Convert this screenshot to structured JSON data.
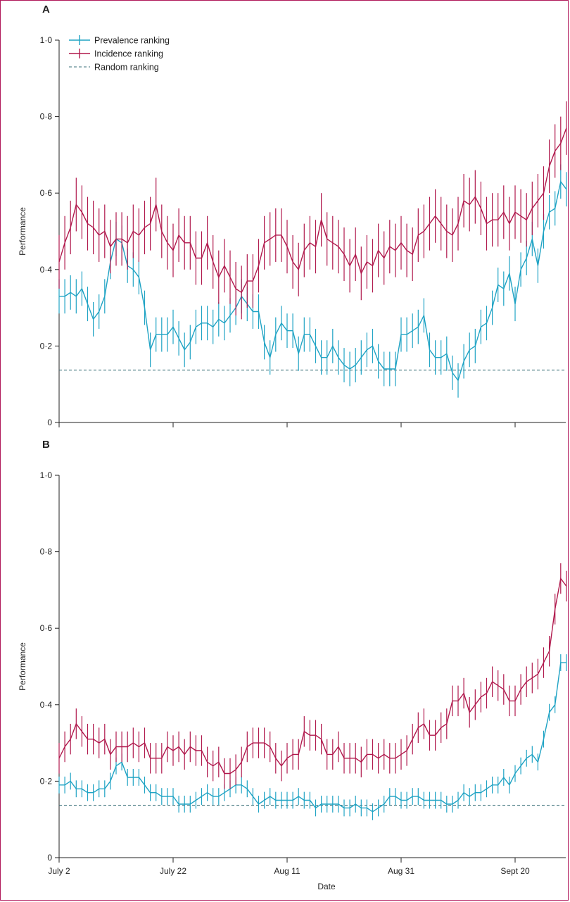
{
  "chart_data": [
    {
      "type": "line",
      "panel_label": "A",
      "title": "",
      "xlabel": "",
      "ylabel": "Performance",
      "ylim": [
        0,
        1
      ],
      "y_ticks": [
        "0",
        "0·2",
        "0·4",
        "0·6",
        "0·8",
        "1·0"
      ],
      "legend_placement": "top-left",
      "legend": [
        {
          "label": "Prevalence ranking",
          "style": "errorbar"
        },
        {
          "label": "Incidence ranking",
          "style": "errorbar"
        },
        {
          "label": "Random ranking",
          "style": "dashed"
        }
      ],
      "colors": {
        "prevalence": "#1fa3c4",
        "incidence": "#b0184c",
        "random": "#3a6f78"
      },
      "x": {
        "start": "July 2",
        "days": 89,
        "ticks": [
          {
            "day": 0,
            "label": "July 2"
          },
          {
            "day": 20,
            "label": "July 22"
          },
          {
            "day": 40,
            "label": "Aug 11"
          },
          {
            "day": 60,
            "label": "Aug 31"
          },
          {
            "day": 80,
            "label": "Sept 20"
          }
        ]
      },
      "random_baseline": 0.137,
      "series": [
        {
          "name": "Prevalence ranking",
          "values": [
            0.33,
            0.33,
            0.34,
            0.33,
            0.35,
            0.31,
            0.27,
            0.29,
            0.33,
            0.42,
            0.48,
            0.47,
            0.41,
            0.4,
            0.38,
            0.3,
            0.19,
            0.23,
            0.23,
            0.23,
            0.25,
            0.22,
            0.19,
            0.21,
            0.25,
            0.26,
            0.26,
            0.25,
            0.27,
            0.26,
            0.28,
            0.3,
            0.33,
            0.31,
            0.29,
            0.29,
            0.21,
            0.17,
            0.23,
            0.26,
            0.24,
            0.24,
            0.18,
            0.23,
            0.23,
            0.2,
            0.17,
            0.17,
            0.2,
            0.17,
            0.15,
            0.14,
            0.15,
            0.17,
            0.19,
            0.2,
            0.16,
            0.14,
            0.14,
            0.14,
            0.23,
            0.23,
            0.24,
            0.25,
            0.28,
            0.19,
            0.17,
            0.17,
            0.18,
            0.13,
            0.11,
            0.16,
            0.19,
            0.2,
            0.25,
            0.26,
            0.3,
            0.36,
            0.35,
            0.39,
            0.31,
            0.4,
            0.43,
            0.48,
            0.41,
            0.5,
            0.55,
            0.56,
            0.63,
            0.61
          ],
          "err": 0.045
        },
        {
          "name": "Incidence ranking",
          "values": [
            0.42,
            0.47,
            0.51,
            0.57,
            0.55,
            0.52,
            0.51,
            0.49,
            0.5,
            0.46,
            0.48,
            0.48,
            0.47,
            0.5,
            0.49,
            0.51,
            0.52,
            0.57,
            0.5,
            0.47,
            0.45,
            0.49,
            0.47,
            0.47,
            0.43,
            0.43,
            0.47,
            0.42,
            0.38,
            0.41,
            0.38,
            0.35,
            0.34,
            0.37,
            0.37,
            0.41,
            0.47,
            0.48,
            0.49,
            0.49,
            0.46,
            0.42,
            0.4,
            0.45,
            0.47,
            0.46,
            0.53,
            0.48,
            0.47,
            0.46,
            0.44,
            0.41,
            0.44,
            0.39,
            0.42,
            0.41,
            0.45,
            0.43,
            0.46,
            0.45,
            0.47,
            0.45,
            0.44,
            0.49,
            0.5,
            0.52,
            0.54,
            0.52,
            0.5,
            0.49,
            0.52,
            0.58,
            0.57,
            0.59,
            0.56,
            0.52,
            0.53,
            0.53,
            0.55,
            0.52,
            0.55,
            0.54,
            0.53,
            0.56,
            0.58,
            0.6,
            0.67,
            0.71,
            0.73,
            0.77
          ],
          "err": 0.07
        }
      ]
    },
    {
      "type": "line",
      "panel_label": "B",
      "title": "",
      "xlabel": "Date",
      "ylabel": "Performance",
      "ylim": [
        0,
        1
      ],
      "y_ticks": [
        "0",
        "0·2",
        "0·4",
        "0·6",
        "0·8",
        "1·0"
      ],
      "colors": {
        "prevalence": "#1fa3c4",
        "incidence": "#b0184c",
        "random": "#3a6f78"
      },
      "x": {
        "start": "July 2",
        "days": 89,
        "ticks": [
          {
            "day": 0,
            "label": "July 2"
          },
          {
            "day": 20,
            "label": "July 22"
          },
          {
            "day": 40,
            "label": "Aug 11"
          },
          {
            "day": 60,
            "label": "Aug 31"
          },
          {
            "day": 80,
            "label": "Sept 20"
          }
        ]
      },
      "random_baseline": 0.137,
      "series": [
        {
          "name": "Prevalence ranking",
          "values": [
            0.19,
            0.19,
            0.2,
            0.18,
            0.18,
            0.17,
            0.17,
            0.18,
            0.18,
            0.2,
            0.24,
            0.25,
            0.21,
            0.21,
            0.21,
            0.19,
            0.17,
            0.17,
            0.16,
            0.16,
            0.16,
            0.14,
            0.14,
            0.14,
            0.15,
            0.16,
            0.17,
            0.16,
            0.16,
            0.17,
            0.18,
            0.19,
            0.19,
            0.18,
            0.16,
            0.14,
            0.15,
            0.16,
            0.15,
            0.15,
            0.15,
            0.15,
            0.16,
            0.15,
            0.15,
            0.13,
            0.14,
            0.14,
            0.14,
            0.14,
            0.13,
            0.13,
            0.14,
            0.13,
            0.13,
            0.12,
            0.13,
            0.14,
            0.16,
            0.16,
            0.15,
            0.15,
            0.16,
            0.16,
            0.15,
            0.15,
            0.15,
            0.15,
            0.14,
            0.14,
            0.15,
            0.17,
            0.16,
            0.17,
            0.17,
            0.18,
            0.19,
            0.19,
            0.21,
            0.19,
            0.22,
            0.24,
            0.26,
            0.27,
            0.25,
            0.31,
            0.38,
            0.4,
            0.51,
            0.51
          ],
          "err": 0.022
        },
        {
          "name": "Incidence ranking",
          "values": [
            0.26,
            0.29,
            0.31,
            0.35,
            0.33,
            0.31,
            0.31,
            0.3,
            0.31,
            0.27,
            0.29,
            0.29,
            0.29,
            0.3,
            0.29,
            0.3,
            0.26,
            0.26,
            0.26,
            0.29,
            0.28,
            0.29,
            0.27,
            0.29,
            0.28,
            0.28,
            0.25,
            0.24,
            0.25,
            0.22,
            0.22,
            0.23,
            0.25,
            0.29,
            0.3,
            0.3,
            0.3,
            0.29,
            0.26,
            0.24,
            0.26,
            0.27,
            0.27,
            0.33,
            0.32,
            0.32,
            0.31,
            0.27,
            0.27,
            0.29,
            0.26,
            0.26,
            0.26,
            0.25,
            0.27,
            0.27,
            0.26,
            0.27,
            0.26,
            0.26,
            0.27,
            0.28,
            0.31,
            0.34,
            0.35,
            0.32,
            0.32,
            0.34,
            0.35,
            0.41,
            0.41,
            0.43,
            0.38,
            0.4,
            0.42,
            0.43,
            0.46,
            0.45,
            0.44,
            0.41,
            0.41,
            0.44,
            0.46,
            0.47,
            0.48,
            0.51,
            0.54,
            0.65,
            0.73,
            0.71
          ],
          "err": 0.04
        }
      ]
    }
  ]
}
